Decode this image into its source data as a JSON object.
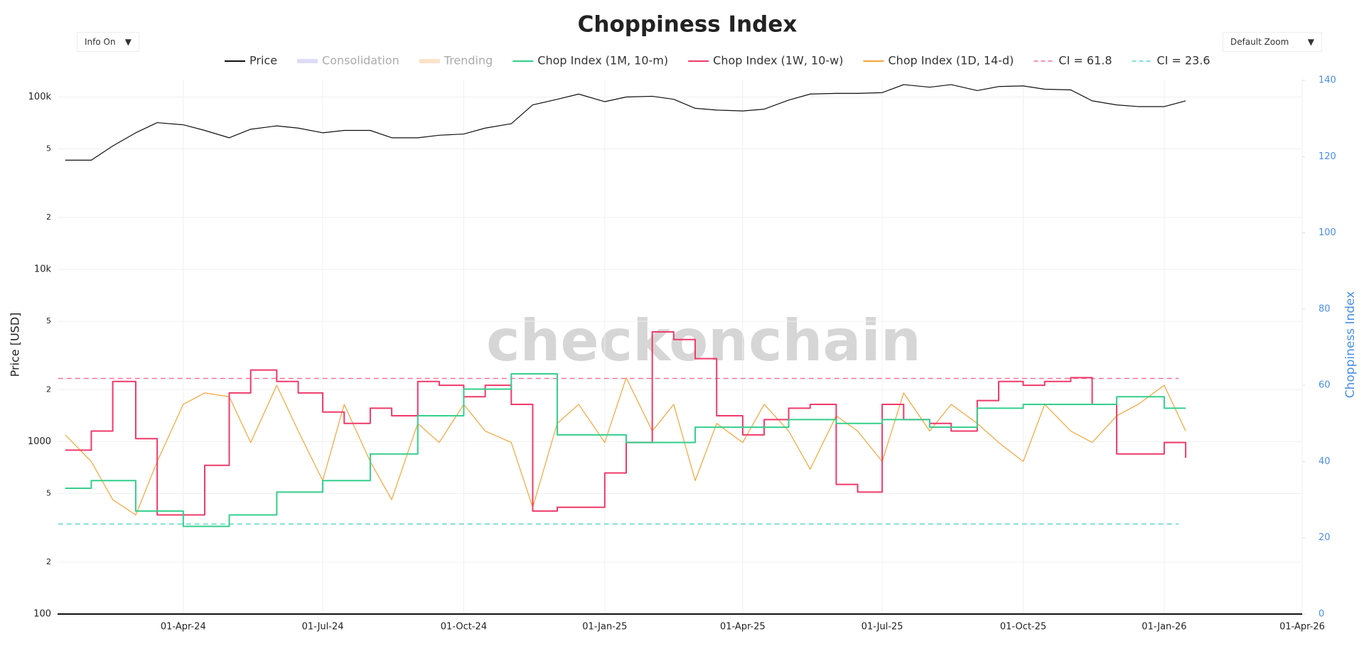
{
  "controls": [
    "Info On",
    "Default Zoom"
  ],
  "chart_data": {
    "type": "line",
    "title": "Choppiness Index",
    "watermark": "checkonchain",
    "y_label": "Price [USD]",
    "y2_label": "Choppiness Index",
    "log_y": true,
    "grid": true,
    "xlim": [
      "2024-01-10",
      "2026-04-01"
    ],
    "xticks": [
      {
        "value": "2024-04-01",
        "label": "01-Apr-24"
      },
      {
        "value": "2024-07-01",
        "label": "01-Jul-24"
      },
      {
        "value": "2024-10-01",
        "label": "01-Oct-24"
      },
      {
        "value": "2025-01-01",
        "label": "01-Jan-25"
      },
      {
        "value": "2025-04-01",
        "label": "01-Apr-25"
      },
      {
        "value": "2025-07-01",
        "label": "01-Jul-25"
      },
      {
        "value": "2025-10-01",
        "label": "01-Oct-25"
      },
      {
        "value": "2026-01-01",
        "label": "01-Jan-26"
      },
      {
        "value": "2026-04-01",
        "label": "01-Apr-26"
      }
    ],
    "ylim": [
      100,
      125000
    ],
    "yticks": [
      100,
      {
        "value": 200,
        "label": "2"
      },
      {
        "value": 500,
        "label": "5"
      },
      1000,
      {
        "value": 2000,
        "label": "2"
      },
      {
        "value": 5000,
        "label": "5"
      },
      {
        "value": 10000,
        "label": "10k"
      },
      {
        "value": 20000,
        "label": "2"
      },
      {
        "value": 50000,
        "label": "5"
      },
      {
        "value": 100000,
        "label": "100k"
      }
    ],
    "y2lim": [
      0,
      140
    ],
    "y2ticks": [
      0,
      20,
      40,
      60,
      80,
      100,
      120,
      140
    ],
    "x": [
      "2024-01-15",
      "2024-02-01",
      "2024-02-15",
      "2024-03-01",
      "2024-03-15",
      "2024-04-01",
      "2024-04-15",
      "2024-05-01",
      "2024-05-15",
      "2024-06-01",
      "2024-06-15",
      "2024-07-01",
      "2024-07-15",
      "2024-08-01",
      "2024-08-15",
      "2024-09-01",
      "2024-09-15",
      "2024-10-01",
      "2024-10-15",
      "2024-11-01",
      "2024-11-15",
      "2024-12-01",
      "2024-12-15",
      "2025-01-01",
      "2025-01-15",
      "2025-02-01",
      "2025-02-15",
      "2025-03-01",
      "2025-03-15",
      "2025-04-01",
      "2025-04-15",
      "2025-05-01",
      "2025-05-15",
      "2025-06-01",
      "2025-06-15",
      "2025-07-01",
      "2025-07-15",
      "2025-08-01",
      "2025-08-15",
      "2025-09-01",
      "2025-09-15",
      "2025-10-01",
      "2025-10-15",
      "2025-11-01",
      "2025-11-15",
      "2025-12-01",
      "2025-12-15",
      "2026-01-01",
      "2026-01-15"
    ],
    "series": [
      {
        "name": "Price",
        "color": "#111111",
        "width": 1.2,
        "values": [
          43000,
          43000,
          52000,
          62000,
          71000,
          69000,
          64000,
          58000,
          65000,
          68000,
          66000,
          62000,
          64000,
          64000,
          58000,
          58000,
          60000,
          61000,
          66000,
          70000,
          90000,
          97000,
          104000,
          94000,
          100000,
          101000,
          97000,
          86000,
          84000,
          83000,
          85000,
          96000,
          104000,
          105000,
          105000,
          106000,
          118000,
          114000,
          118000,
          109000,
          115000,
          116000,
          111000,
          110000,
          95000,
          90000,
          88000,
          88000,
          95000
        ]
      },
      {
        "name": "Chop Index (1M, 10-m)",
        "color": "#34cf8c",
        "axis": "y2",
        "line_shape": "hv",
        "width": 2,
        "values": [
          33,
          35,
          35,
          27,
          27,
          23,
          23,
          26,
          26,
          32,
          32,
          35,
          35,
          42,
          42,
          52,
          52,
          59,
          59,
          63,
          63,
          47,
          47,
          47,
          45,
          45,
          45,
          49,
          49,
          49,
          49,
          51,
          51,
          50,
          50,
          51,
          51,
          49,
          49,
          54,
          54,
          55,
          55,
          55,
          55,
          57,
          57,
          54,
          54
        ]
      },
      {
        "name": "Chop Index (1W, 10-w)",
        "color": "#ee3a6a",
        "axis": "y2",
        "line_shape": "hv",
        "width": 2,
        "values": [
          43,
          48,
          61,
          46,
          26,
          26,
          39,
          58,
          64,
          61,
          58,
          53,
          50,
          54,
          52,
          61,
          60,
          57,
          60,
          55,
          27,
          28,
          28,
          37,
          45,
          74,
          72,
          67,
          52,
          47,
          51,
          54,
          55,
          34,
          32,
          55,
          51,
          50,
          48,
          56,
          61,
          60,
          61,
          62,
          55,
          42,
          42,
          45,
          41
        ]
      },
      {
        "name": "Chop Index (1D, 14-d)",
        "color": "#f3a53a",
        "axis": "y2",
        "width": 1.2,
        "values": [
          47,
          40,
          30,
          26,
          40,
          55,
          58,
          57,
          45,
          60,
          48,
          35,
          55,
          40,
          30,
          50,
          45,
          55,
          48,
          45,
          28,
          50,
          55,
          45,
          62,
          48,
          55,
          35,
          50,
          45,
          55,
          48,
          38,
          52,
          48,
          40,
          58,
          48,
          55,
          50,
          45,
          40,
          55,
          48,
          45,
          52,
          55,
          60,
          48
        ]
      }
    ],
    "bands": [
      {
        "name": "Consolidation",
        "color": "#dcdcf7"
      },
      {
        "name": "Trending",
        "color": "#fde2c8"
      }
    ],
    "hlines": [
      {
        "name": "CI = 61.8",
        "value": 61.8,
        "color": "#f2719a"
      },
      {
        "name": "CI = 23.6",
        "value": 23.6,
        "color": "#5fd6c6"
      }
    ]
  }
}
